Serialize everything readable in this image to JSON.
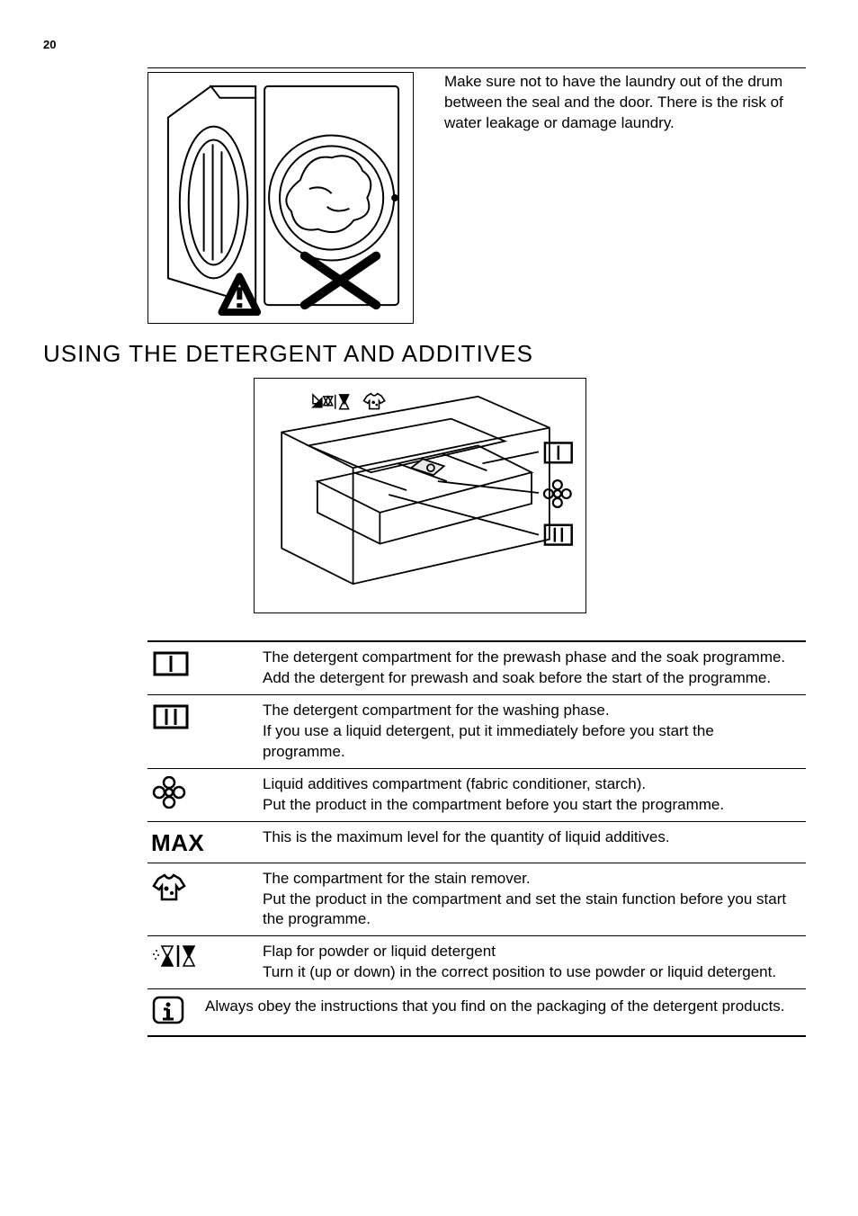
{
  "page_number": "20",
  "drum_warning": "Make sure not to have the laundry out of the drum between the seal and the door. There is the risk of water leakage or damage laundry.",
  "section_heading": "USING THE DETERGENT AND ADDITIVES",
  "table": {
    "rows": [
      {
        "icon": "one-bar",
        "desc": "The detergent compartment for the prewash phase and the soak programme.\nAdd the detergent for prewash and soak before the start of the programme."
      },
      {
        "icon": "two-bar",
        "desc": "The detergent compartment for the washing phase.\nIf you use a liquid detergent, put it immediately before you start the programme."
      },
      {
        "icon": "flower",
        "desc": "Liquid additives compartment (fabric conditioner, starch).\nPut the product in the compartment before you start the programme."
      },
      {
        "icon": "max",
        "desc": "This is the maximum level for the quantity of liquid additives."
      },
      {
        "icon": "shirt",
        "desc": "The compartment for the stain remover.\nPut the product in the compartment and set the stain function before you start the programme."
      },
      {
        "icon": "flap",
        "desc": "Flap for powder or liquid detergent\nTurn it (up or down) in the correct position to use powder or liquid detergent."
      }
    ],
    "info_note": "Always obey the instructions that you find on the packaging of the detergent products.",
    "max_label": "MAX"
  },
  "colors": {
    "text": "#000000",
    "bg": "#ffffff",
    "rule": "#000000"
  }
}
